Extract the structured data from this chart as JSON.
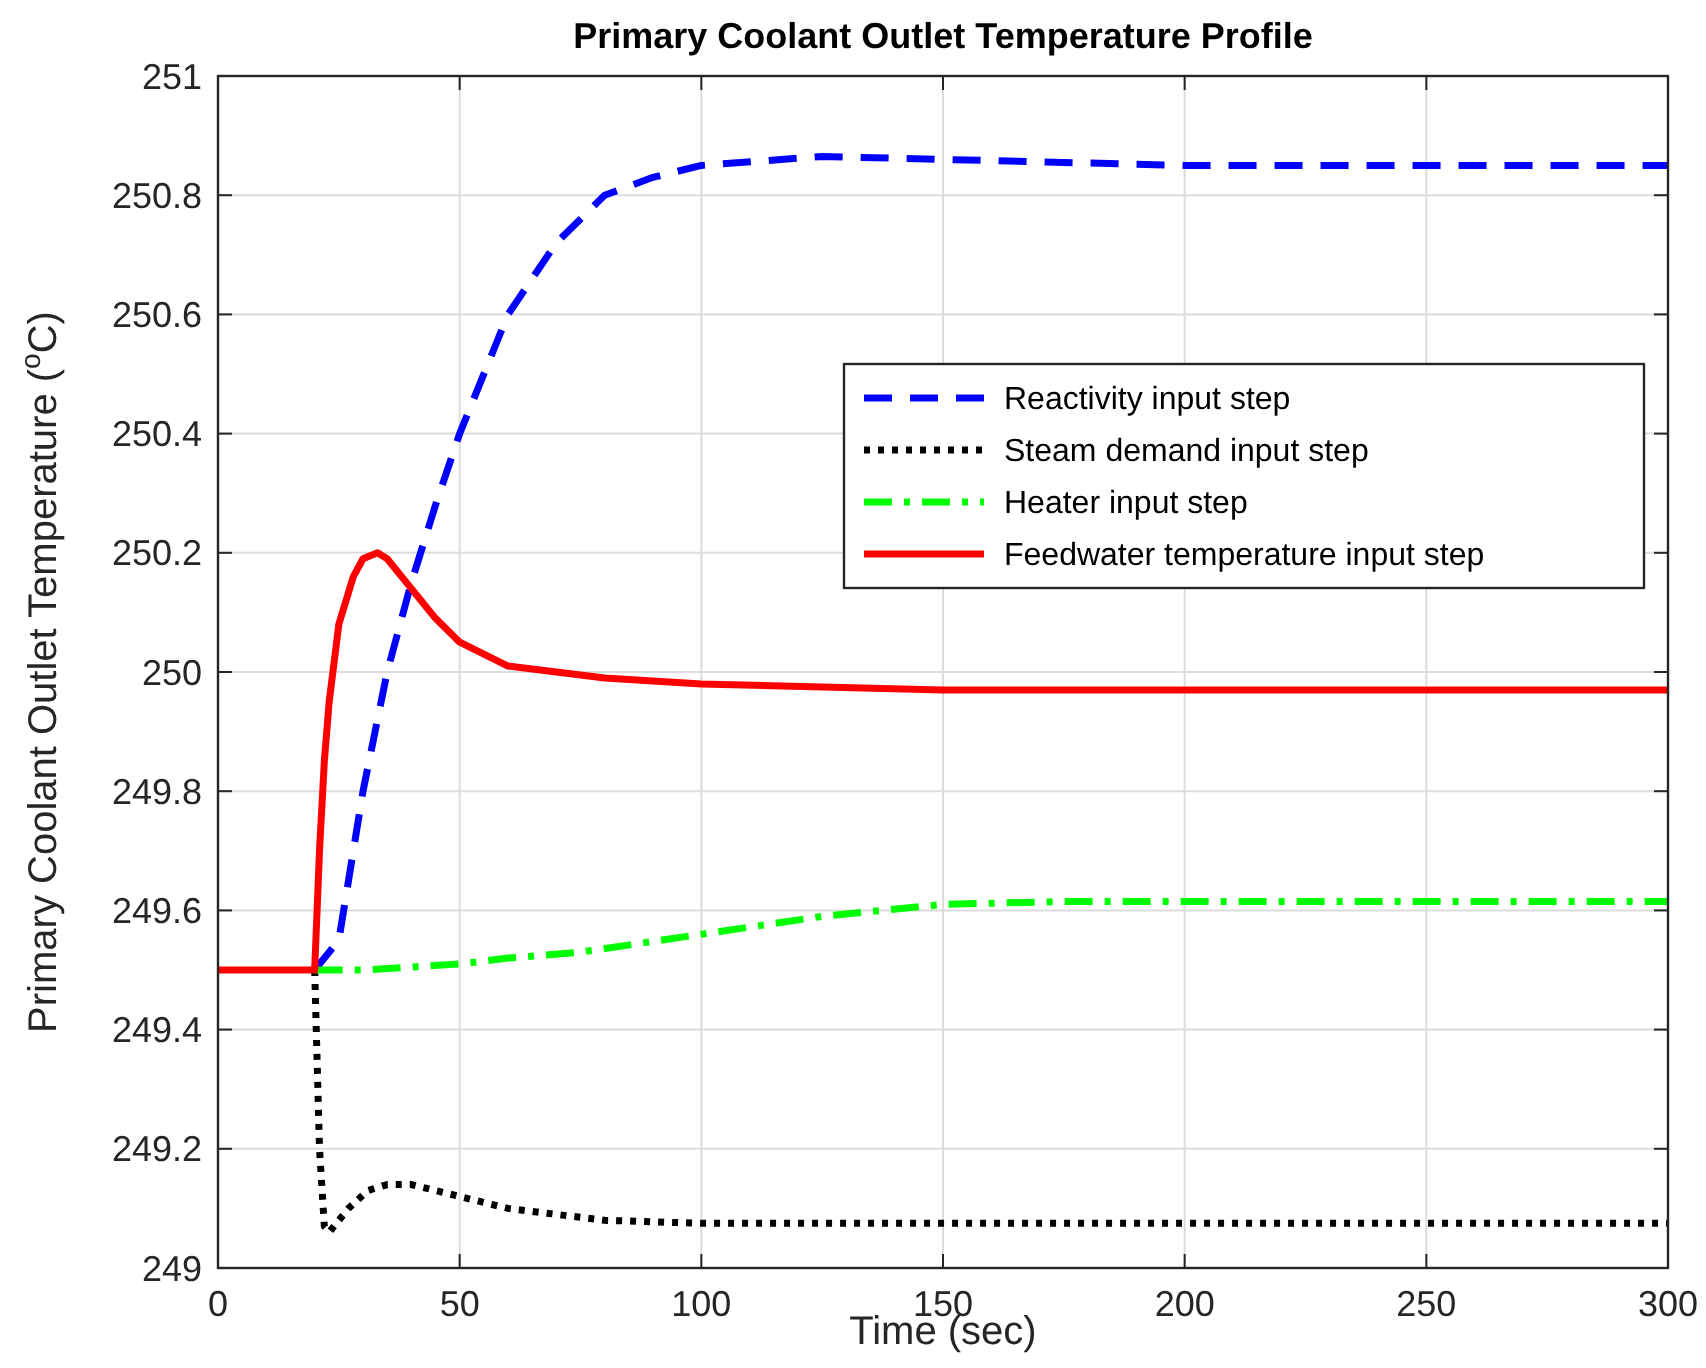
{
  "chart_data": {
    "type": "line",
    "title": "Primary Coolant Outlet Temperature Profile",
    "xlabel": "Time (sec)",
    "ylabel": "Primary Coolant Outlet Temperature ($^{o}$C)",
    "xlim": [
      0,
      300
    ],
    "ylim": [
      249,
      251
    ],
    "xticks": [
      0,
      50,
      100,
      150,
      200,
      250,
      300
    ],
    "yticks": [
      249,
      249.2,
      249.4,
      249.6,
      249.8,
      250,
      250.2,
      250.4,
      250.6,
      250.8,
      251
    ],
    "grid": true,
    "legend": "top right",
    "marker": "none",
    "series": [
      {
        "name": "Reactivity input step",
        "color": "#0000ff",
        "line_style": "dashed",
        "x": [
          20,
          25,
          30,
          35,
          40,
          45,
          50,
          60,
          70,
          80,
          90,
          100,
          125,
          150,
          200,
          250,
          300
        ],
        "values": [
          249.5,
          249.55,
          249.8,
          250.0,
          250.15,
          250.28,
          250.4,
          250.6,
          250.72,
          250.8,
          250.83,
          250.85,
          250.865,
          250.86,
          250.85,
          250.85,
          250.85
        ]
      },
      {
        "name": "Steam demand input step",
        "color": "#000000",
        "line_style": "dotted",
        "x": [
          20,
          21,
          22,
          23,
          25,
          27,
          31,
          35,
          40,
          45,
          50,
          60,
          70,
          80,
          100,
          150,
          200,
          250,
          300
        ],
        "values": [
          249.5,
          249.2,
          249.07,
          249.06,
          249.08,
          249.1,
          249.13,
          249.14,
          249.14,
          249.13,
          249.12,
          249.1,
          249.09,
          249.08,
          249.075,
          249.075,
          249.075,
          249.075,
          249.075
        ]
      },
      {
        "name": "Heater input step",
        "color": "#00ff00",
        "line_style": "dashdot",
        "x": [
          20,
          30,
          40,
          50,
          60,
          75,
          100,
          125,
          150,
          175,
          200,
          250,
          300
        ],
        "values": [
          249.5,
          249.5,
          249.505,
          249.51,
          249.52,
          249.53,
          249.56,
          249.59,
          249.61,
          249.615,
          249.615,
          249.615,
          249.615
        ]
      },
      {
        "name": "Feedwater temperature input step",
        "color": "#ff0000",
        "line_style": "solid",
        "x": [
          0,
          20,
          21,
          22,
          23,
          25,
          28,
          30,
          33,
          35,
          38,
          42,
          45,
          50,
          55,
          60,
          70,
          80,
          100,
          150,
          200,
          250,
          300
        ],
        "values": [
          249.5,
          249.5,
          249.7,
          249.85,
          249.95,
          250.08,
          250.16,
          250.19,
          250.2,
          250.19,
          250.16,
          250.12,
          250.09,
          250.05,
          250.03,
          250.01,
          250.0,
          249.99,
          249.98,
          249.97,
          249.97,
          249.97,
          249.97
        ]
      }
    ]
  }
}
